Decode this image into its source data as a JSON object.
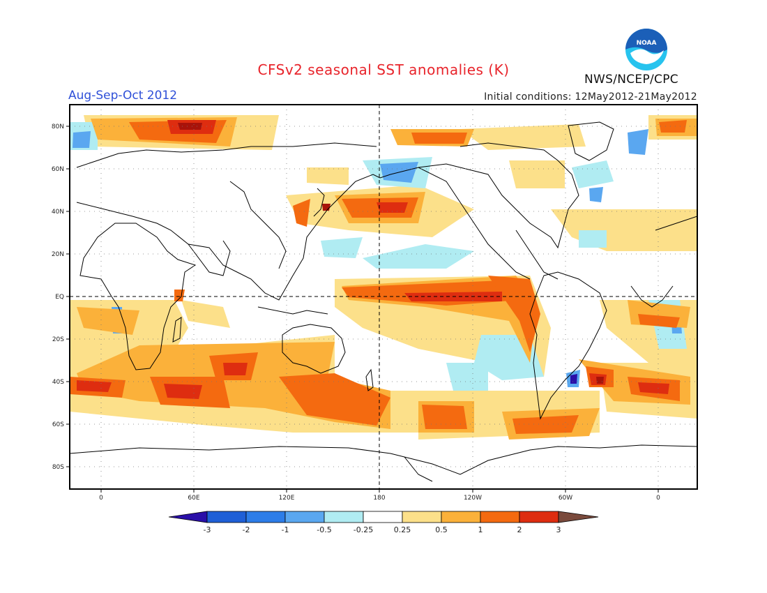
{
  "header": {
    "title": "CFSv2 seasonal SST anomalies (K)",
    "season": "Aug-Sep-Oct 2012",
    "initial_conditions": "Initial conditions: 12May2012-21May2012",
    "organization": "NWS/NCEP/CPC",
    "logo_text": "NOAA"
  },
  "map": {
    "lat_labels": [
      "80N",
      "60N",
      "40N",
      "20N",
      "EQ",
      "20S",
      "40S",
      "60S",
      "80S"
    ],
    "lon_labels": [
      "0",
      "60E",
      "120E",
      "180",
      "120W",
      "60W",
      "0"
    ]
  },
  "colorbar": {
    "labels": [
      "-3",
      "-2",
      "-1",
      "-0.5",
      "-0.25",
      "0.25",
      "0.5",
      "1",
      "2",
      "3"
    ],
    "colors": [
      "#2a0fa8",
      "#1f5fd6",
      "#2d7de8",
      "#5aa7f0",
      "#b0ecf2",
      "#ffffff",
      "#fce08a",
      "#fbb13a",
      "#f46a10",
      "#de2d10",
      "#a8130a",
      "#7a4a3c"
    ]
  },
  "colors": {
    "title": "#e8242b",
    "season": "#2f50d8",
    "noaa_blue": "#1b5fb8",
    "noaa_cyan": "#27c3ee"
  }
}
